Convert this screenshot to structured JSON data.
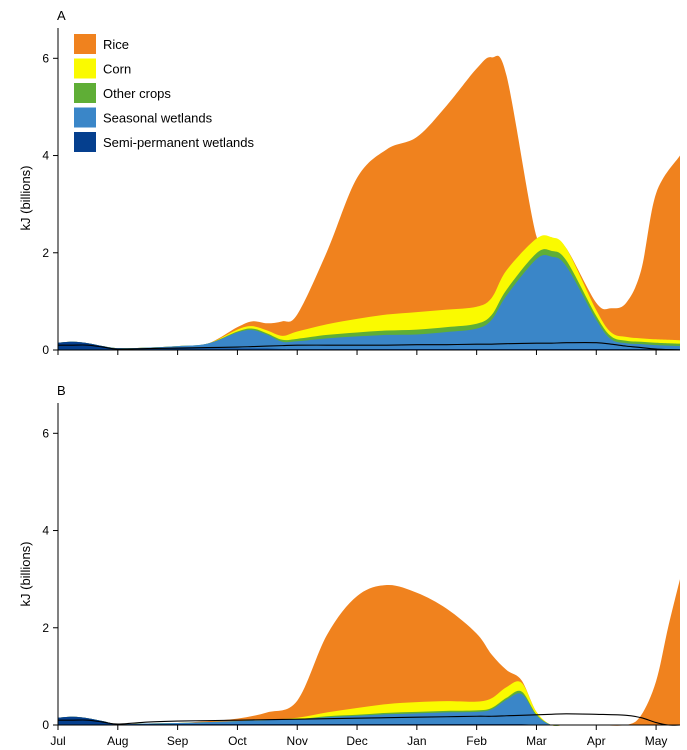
{
  "legend": [
    {
      "label": "Rice",
      "color": "#F0821E",
      "key": "rice"
    },
    {
      "label": "Corn",
      "color": "#FAFA00",
      "key": "corn"
    },
    {
      "label": "Other crops",
      "color": "#5FAE36",
      "key": "other"
    },
    {
      "label": "Seasonal wetlands",
      "color": "#3A86C8",
      "key": "seasonal"
    },
    {
      "label": "Semi-permanent wetlands",
      "color": "#053F8E",
      "key": "semi"
    }
  ],
  "chart_data": [
    {
      "panel": "A",
      "type": "area",
      "stacked": true,
      "ylabel": "kJ (billions)",
      "ylim": [
        0,
        6.5
      ],
      "yticks": [
        0,
        2,
        4,
        6
      ],
      "xlim": [
        0,
        10.4
      ],
      "x_ticks": [
        0,
        1,
        2,
        3,
        4,
        5,
        6,
        7,
        8,
        9,
        10
      ],
      "x_tick_labels": [
        "Jul",
        "Aug",
        "Sep",
        "Oct",
        "Nov",
        "Dec",
        "Jan",
        "Feb",
        "Mar",
        "Apr",
        "May"
      ],
      "x": [
        0,
        0.25,
        0.5,
        0.75,
        1,
        1.5,
        2,
        2.5,
        3,
        3.25,
        3.5,
        3.75,
        4,
        4.5,
        5,
        5.5,
        6,
        6.5,
        7,
        7.25,
        7.5,
        8,
        8.25,
        8.5,
        9,
        9.25,
        9.5,
        9.75,
        10,
        10.4
      ],
      "series": {
        "semi": [
          0.15,
          0.17,
          0.14,
          0.08,
          0.02,
          0.02,
          0.03,
          0.03,
          0.03,
          0.03,
          0.03,
          0.02,
          0.02,
          0.02,
          0.02,
          0.02,
          0.02,
          0.02,
          0.02,
          0.02,
          0.02,
          0.02,
          0.02,
          0.02,
          0.02,
          0.02,
          0.02,
          0.02,
          0.02,
          0.02
        ],
        "seasonal": [
          0,
          0,
          0,
          0,
          0.02,
          0.03,
          0.05,
          0.1,
          0.33,
          0.38,
          0.28,
          0.15,
          0.16,
          0.22,
          0.26,
          0.29,
          0.3,
          0.35,
          0.42,
          0.6,
          1.1,
          1.85,
          1.9,
          1.7,
          0.6,
          0.2,
          0.12,
          0.1,
          0.08,
          0.06
        ],
        "other": [
          0,
          0,
          0,
          0,
          0,
          0,
          0,
          0,
          0.02,
          0.03,
          0.03,
          0.04,
          0.05,
          0.07,
          0.08,
          0.09,
          0.1,
          0.1,
          0.1,
          0.1,
          0.12,
          0.12,
          0.12,
          0.12,
          0.08,
          0.06,
          0.05,
          0.05,
          0.05,
          0.05
        ],
        "corn": [
          0,
          0,
          0,
          0,
          0,
          0,
          0,
          0,
          0.04,
          0.05,
          0.06,
          0.08,
          0.15,
          0.22,
          0.28,
          0.33,
          0.36,
          0.36,
          0.35,
          0.35,
          0.4,
          0.3,
          0.28,
          0.25,
          0.12,
          0.08,
          0.08,
          0.07,
          0.07,
          0.07
        ],
        "rice": [
          0,
          0,
          0,
          0,
          0,
          0,
          0,
          0,
          0.05,
          0.1,
          0.15,
          0.3,
          0.35,
          1.5,
          2.9,
          3.4,
          3.6,
          4.2,
          4.9,
          4.95,
          4.0,
          0.05,
          0.0,
          0.0,
          0.15,
          0.5,
          0.7,
          1.4,
          3.0,
          3.8
        ],
        "line": [
          0.1,
          0.1,
          0.1,
          0.06,
          0.02,
          0.03,
          0.04,
          0.05,
          0.06,
          0.07,
          0.08,
          0.09,
          0.1,
          0.1,
          0.1,
          0.1,
          0.11,
          0.11,
          0.12,
          0.12,
          0.13,
          0.14,
          0.14,
          0.15,
          0.15,
          0.12,
          0.08,
          0.05,
          0.02,
          0.0
        ]
      }
    },
    {
      "panel": "B",
      "type": "area",
      "stacked": true,
      "ylabel": "kJ (billions)",
      "ylim": [
        0,
        6.5
      ],
      "yticks": [
        0,
        2,
        4,
        6
      ],
      "xlim": [
        0,
        10.4
      ],
      "x_ticks": [
        0,
        1,
        2,
        3,
        4,
        5,
        6,
        7,
        8,
        9,
        10
      ],
      "x_tick_labels": [
        "Jul",
        "Aug",
        "Sep",
        "Oct",
        "Nov",
        "Dec",
        "Jan",
        "Feb",
        "Mar",
        "Apr",
        "May"
      ],
      "x": [
        0,
        0.25,
        0.5,
        0.75,
        1,
        1.5,
        2,
        2.5,
        3,
        3.5,
        4,
        4.5,
        5,
        5.5,
        6,
        6.5,
        7,
        7.25,
        7.5,
        7.75,
        8,
        8.25,
        8.5,
        9,
        9.5,
        9.75,
        10,
        10.2,
        10.4
      ],
      "series": {
        "semi": [
          0.15,
          0.17,
          0.14,
          0.08,
          0.02,
          0.02,
          0.02,
          0.02,
          0.02,
          0.02,
          0.02,
          0.02,
          0.02,
          0.02,
          0.02,
          0.02,
          0.02,
          0.02,
          0.02,
          0.02,
          0.0,
          0.0,
          0.0,
          0.0,
          0.0,
          0.0,
          0.0,
          0.0,
          0.0
        ],
        "seasonal": [
          0,
          0,
          0,
          0,
          0,
          0.01,
          0.02,
          0.04,
          0.06,
          0.08,
          0.1,
          0.14,
          0.17,
          0.2,
          0.22,
          0.24,
          0.25,
          0.3,
          0.5,
          0.62,
          0.2,
          0.0,
          0.0,
          0.0,
          0.0,
          0.0,
          0.0,
          0.0,
          0.0
        ],
        "other": [
          0,
          0,
          0,
          0,
          0,
          0,
          0,
          0,
          0,
          0,
          0,
          0.02,
          0.02,
          0.03,
          0.03,
          0.03,
          0.03,
          0.03,
          0.04,
          0.05,
          0.02,
          0.0,
          0.0,
          0.0,
          0.0,
          0.0,
          0.0,
          0.0,
          0.0
        ],
        "corn": [
          0,
          0,
          0,
          0,
          0,
          0,
          0,
          0,
          0,
          0.01,
          0.03,
          0.08,
          0.14,
          0.18,
          0.2,
          0.2,
          0.18,
          0.2,
          0.22,
          0.18,
          0.05,
          0.0,
          0.0,
          0.0,
          0.0,
          0.0,
          0.0,
          0.0,
          0.0
        ],
        "rice": [
          0,
          0,
          0,
          0,
          0,
          0,
          0,
          0.02,
          0.05,
          0.15,
          0.35,
          1.6,
          2.3,
          2.45,
          2.25,
          1.9,
          1.4,
          0.9,
          0.35,
          0.05,
          0.0,
          0.0,
          0.0,
          0.0,
          0.0,
          0.2,
          0.9,
          2.0,
          3.0
        ],
        "line": [
          0.1,
          0.1,
          0.1,
          0.06,
          0.02,
          0.06,
          0.08,
          0.09,
          0.1,
          0.11,
          0.12,
          0.13,
          0.14,
          0.15,
          0.16,
          0.17,
          0.18,
          0.18,
          0.19,
          0.2,
          0.21,
          0.22,
          0.23,
          0.22,
          0.2,
          0.15,
          0.05,
          0.0,
          0.0
        ]
      }
    }
  ]
}
